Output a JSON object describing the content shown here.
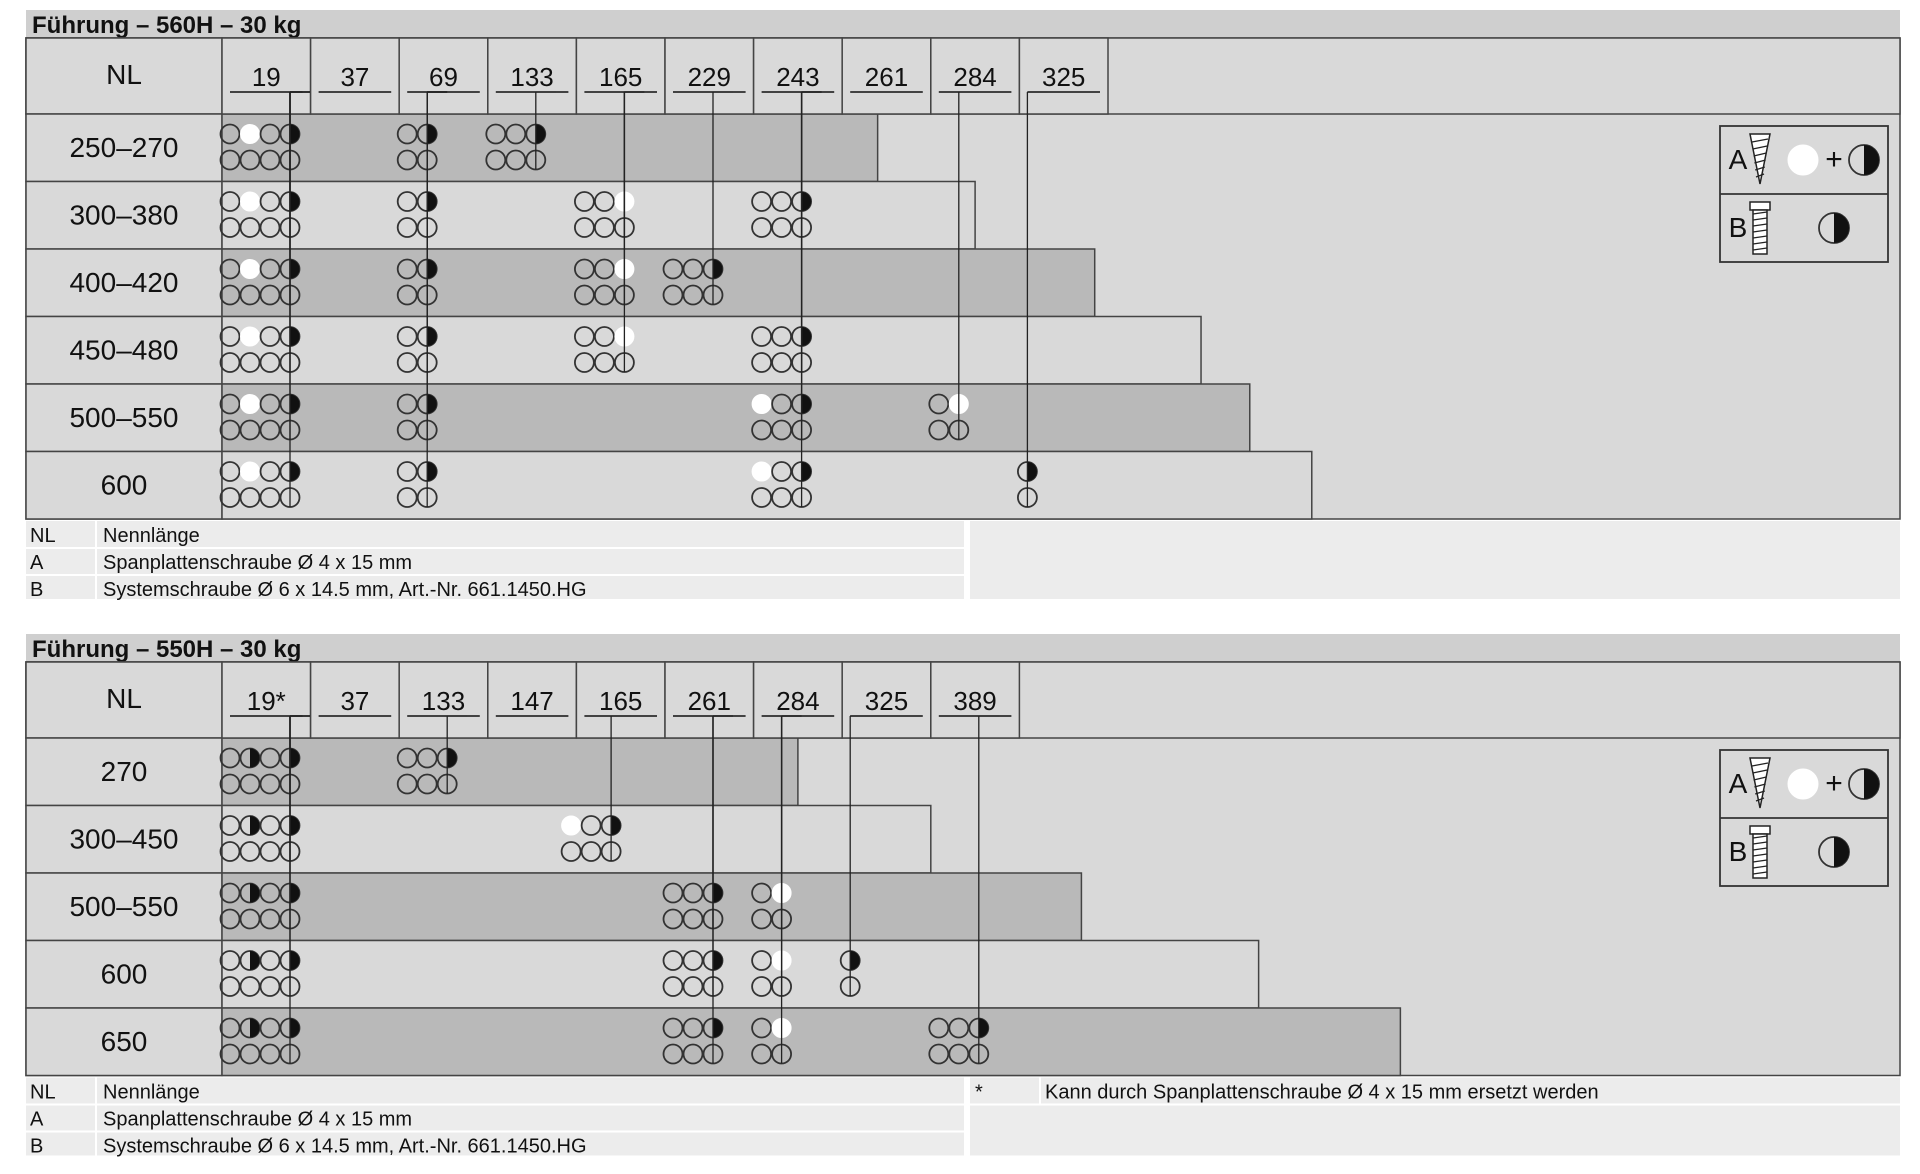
{
  "colors": {
    "dark": "#b9b9b9",
    "light": "#d9d9d9",
    "stroke": "#444444",
    "header": "#cfcfcf"
  },
  "sections": [
    {
      "title": "Führung – 560H – 30 kg",
      "nl_header": "NL",
      "positions": [
        "19",
        "37",
        "69",
        "133",
        "165",
        "229",
        "243",
        "261",
        "284",
        "325"
      ],
      "rows": [
        {
          "label": "250–270",
          "bar_end_col": 7.4,
          "groups": [
            {
              "col": 0,
              "top": [
                "e",
                "w",
                "e",
                "h"
              ],
              "bottom": [
                "e",
                "e",
                "e",
                "e"
              ]
            },
            {
              "col": 2,
              "top": [
                "e",
                "h"
              ],
              "bottom": [
                "e",
                "e"
              ]
            },
            {
              "col": 3,
              "top": [
                "e",
                "e",
                "h"
              ],
              "bottom": [
                "e",
                "e",
                "e"
              ]
            }
          ]
        },
        {
          "label": "300–380",
          "bar_end_col": 8.5,
          "groups": [
            {
              "col": 0,
              "top": [
                "e",
                "w",
                "e",
                "h"
              ],
              "bottom": [
                "e",
                "e",
                "e",
                "e"
              ]
            },
            {
              "col": 2,
              "top": [
                "e",
                "h"
              ],
              "bottom": [
                "e",
                "e"
              ]
            },
            {
              "col": 4,
              "top": [
                "e",
                "e",
                "w"
              ],
              "bottom": [
                "e",
                "e",
                "e"
              ]
            },
            {
              "col": 6,
              "top": [
                "e",
                "e",
                "h"
              ],
              "bottom": [
                "e",
                "e",
                "e"
              ]
            }
          ]
        },
        {
          "label": "400–420",
          "bar_end_col": 9.85,
          "groups": [
            {
              "col": 0,
              "top": [
                "e",
                "w",
                "e",
                "h"
              ],
              "bottom": [
                "e",
                "e",
                "e",
                "e"
              ]
            },
            {
              "col": 2,
              "top": [
                "e",
                "h"
              ],
              "bottom": [
                "e",
                "e"
              ]
            },
            {
              "col": 4,
              "top": [
                "e",
                "e",
                "w"
              ],
              "bottom": [
                "e",
                "e",
                "e"
              ]
            },
            {
              "col": 5,
              "top": [
                "e",
                "e",
                "h"
              ],
              "bottom": [
                "e",
                "e",
                "e"
              ]
            }
          ]
        },
        {
          "label": "450–480",
          "bar_end_col": 11.05,
          "groups": [
            {
              "col": 0,
              "top": [
                "e",
                "w",
                "e",
                "h"
              ],
              "bottom": [
                "e",
                "e",
                "e",
                "e"
              ]
            },
            {
              "col": 2,
              "top": [
                "e",
                "h"
              ],
              "bottom": [
                "e",
                "e"
              ]
            },
            {
              "col": 4,
              "top": [
                "e",
                "e",
                "w"
              ],
              "bottom": [
                "e",
                "e",
                "e"
              ]
            },
            {
              "col": 6,
              "top": [
                "e",
                "e",
                "h"
              ],
              "bottom": [
                "e",
                "e",
                "e"
              ]
            }
          ]
        },
        {
          "label": "500–550",
          "bar_end_col": 11.6,
          "groups": [
            {
              "col": 0,
              "top": [
                "e",
                "w",
                "e",
                "h"
              ],
              "bottom": [
                "e",
                "e",
                "e",
                "e"
              ]
            },
            {
              "col": 2,
              "top": [
                "e",
                "h"
              ],
              "bottom": [
                "e",
                "e"
              ]
            },
            {
              "col": 6,
              "top": [
                "w",
                "e",
                "h"
              ],
              "bottom": [
                "e",
                "e",
                "e"
              ]
            },
            {
              "col": 8,
              "top": [
                "e",
                "w"
              ],
              "bottom": [
                "e",
                "e"
              ]
            }
          ]
        },
        {
          "label": "600",
          "bar_end_col": 12.3,
          "groups": [
            {
              "col": 0,
              "top": [
                "e",
                "w",
                "e",
                "h"
              ],
              "bottom": [
                "e",
                "e",
                "e",
                "e"
              ]
            },
            {
              "col": 2,
              "top": [
                "e",
                "h"
              ],
              "bottom": [
                "e",
                "e"
              ]
            },
            {
              "col": 6,
              "top": [
                "w",
                "e",
                "h"
              ],
              "bottom": [
                "e",
                "e",
                "e"
              ]
            },
            {
              "col": 9,
              "top": [
                "h"
              ],
              "bottom": [
                "e"
              ]
            }
          ]
        }
      ],
      "legend": [
        {
          "key": "NL",
          "text": "Nennlänge"
        },
        {
          "key": "A",
          "text": "Spanplattenschraube Ø 4 x 15 mm"
        },
        {
          "key": "B",
          "text": "Systemschraube Ø 6 x 14.5 mm, Art.-Nr. 661.1450.HG"
        }
      ],
      "note": null,
      "key_box": {
        "a_label": "A",
        "a_plus": "+",
        "b_label": "B"
      }
    },
    {
      "title": "Führung – 550H – 30 kg",
      "nl_header": "NL",
      "positions": [
        "19*",
        "37",
        "133",
        "147",
        "165",
        "261",
        "284",
        "325",
        "389"
      ],
      "rows": [
        {
          "label": "270",
          "bar_end_col": 6.5,
          "groups": [
            {
              "col": 0,
              "top": [
                "e",
                "h",
                "e",
                "h"
              ],
              "bottom": [
                "e",
                "e",
                "e",
                "e"
              ]
            },
            {
              "col": 2,
              "top": [
                "e",
                "e",
                "h"
              ],
              "bottom": [
                "e",
                "e",
                "e"
              ]
            }
          ]
        },
        {
          "label": "300–450",
          "bar_end_col": 8.0,
          "groups": [
            {
              "col": 0,
              "top": [
                "e",
                "h",
                "e",
                "h"
              ],
              "bottom": [
                "e",
                "e",
                "e",
                "e"
              ]
            },
            {
              "col": 3.85,
              "top": [
                "w",
                "e",
                "h"
              ],
              "bottom": [
                "e",
                "e",
                "e"
              ]
            }
          ]
        },
        {
          "label": "500–550",
          "bar_end_col": 9.7,
          "groups": [
            {
              "col": 0,
              "top": [
                "e",
                "h",
                "e",
                "h"
              ],
              "bottom": [
                "e",
                "e",
                "e",
                "e"
              ]
            },
            {
              "col": 5,
              "top": [
                "e",
                "e",
                "h"
              ],
              "bottom": [
                "e",
                "e",
                "e"
              ]
            },
            {
              "col": 6,
              "top": [
                "e",
                "w"
              ],
              "bottom": [
                "e",
                "e"
              ]
            }
          ]
        },
        {
          "label": "600",
          "bar_end_col": 11.7,
          "groups": [
            {
              "col": 0,
              "top": [
                "e",
                "h",
                "e",
                "h"
              ],
              "bottom": [
                "e",
                "e",
                "e",
                "e"
              ]
            },
            {
              "col": 5,
              "top": [
                "e",
                "e",
                "h"
              ],
              "bottom": [
                "e",
                "e",
                "e"
              ]
            },
            {
              "col": 6,
              "top": [
                "e",
                "w"
              ],
              "bottom": [
                "e",
                "e"
              ]
            },
            {
              "col": 7,
              "top": [
                "h"
              ],
              "bottom": [
                "e"
              ]
            }
          ]
        },
        {
          "label": "650",
          "bar_end_col": 13.3,
          "groups": [
            {
              "col": 0,
              "top": [
                "e",
                "h",
                "e",
                "h"
              ],
              "bottom": [
                "e",
                "e",
                "e",
                "e"
              ]
            },
            {
              "col": 5,
              "top": [
                "e",
                "e",
                "h"
              ],
              "bottom": [
                "e",
                "e",
                "e"
              ]
            },
            {
              "col": 6,
              "top": [
                "e",
                "w"
              ],
              "bottom": [
                "e",
                "e"
              ]
            },
            {
              "col": 8,
              "top": [
                "e",
                "e",
                "h"
              ],
              "bottom": [
                "e",
                "e",
                "e"
              ]
            }
          ]
        }
      ],
      "legend": [
        {
          "key": "NL",
          "text": "Nennlänge"
        },
        {
          "key": "A",
          "text": "Spanplattenschraube Ø 4 x 15 mm"
        },
        {
          "key": "B",
          "text": "Systemschraube Ø 6 x 14.5 mm, Art.-Nr. 661.1450.HG"
        }
      ],
      "note": {
        "key": "*",
        "text": "Kann durch Spanplattenschraube Ø 4 x 15 mm ersetzt werden"
      },
      "key_box": {
        "a_label": "A",
        "a_plus": "+",
        "b_label": "B"
      }
    }
  ]
}
